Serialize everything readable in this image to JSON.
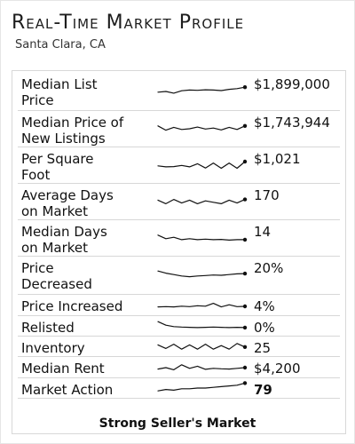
{
  "header": {
    "title": "Real-Time Market Profile",
    "location": "Santa Clara, CA"
  },
  "metrics": [
    {
      "label_lines": [
        "Median List",
        "Price"
      ],
      "value": "$1,899,000",
      "value_style": "normal"
    },
    {
      "label_lines": [
        "Median Price of",
        "New Listings"
      ],
      "value": "$1,743,944",
      "value_style": "normal"
    },
    {
      "label_lines": [
        "Per Square",
        "Foot"
      ],
      "value": "$1,021",
      "value_style": "normal"
    },
    {
      "label_lines": [
        "Average Days",
        "on Market"
      ],
      "value": "170",
      "value_style": "normal"
    },
    {
      "label_lines": [
        "Median Days",
        "on Market"
      ],
      "value": "14",
      "value_style": "normal"
    },
    {
      "label_lines": [
        "Price",
        "Decreased"
      ],
      "value": "20%",
      "value_style": "normal"
    },
    {
      "label_lines": [
        "Price Increased"
      ],
      "value": "4%",
      "value_style": "normal"
    },
    {
      "label_lines": [
        "Relisted"
      ],
      "value": "0%",
      "value_style": "normal"
    },
    {
      "label_lines": [
        "Inventory"
      ],
      "value": "25",
      "value_style": "normal"
    },
    {
      "label_lines": [
        "Median Rent"
      ],
      "value": "$4,200",
      "value_style": "normal"
    },
    {
      "label_lines": [
        "Market Action"
      ],
      "value": "79",
      "value_style": "bold"
    }
  ],
  "sparklines": [
    [
      0.55,
      0.5,
      0.62,
      0.45,
      0.4,
      0.42,
      0.38,
      0.4,
      0.44,
      0.35,
      0.3,
      0.2
    ],
    [
      0.3,
      0.6,
      0.4,
      0.55,
      0.5,
      0.38,
      0.52,
      0.45,
      0.58,
      0.4,
      0.55,
      0.3
    ],
    [
      0.55,
      0.62,
      0.6,
      0.52,
      0.62,
      0.4,
      0.7,
      0.35,
      0.72,
      0.35,
      0.72,
      0.25
    ],
    [
      0.4,
      0.65,
      0.35,
      0.6,
      0.4,
      0.65,
      0.45,
      0.55,
      0.65,
      0.4,
      0.6,
      0.35
    ],
    [
      0.3,
      0.55,
      0.45,
      0.62,
      0.55,
      0.62,
      0.58,
      0.62,
      0.6,
      0.65,
      0.62,
      0.62
    ],
    [
      0.2,
      0.35,
      0.45,
      0.55,
      0.6,
      0.55,
      0.52,
      0.48,
      0.5,
      0.45,
      0.4,
      0.38
    ],
    [
      0.6,
      0.58,
      0.6,
      0.55,
      0.58,
      0.52,
      0.55,
      0.35,
      0.6,
      0.45,
      0.58,
      0.56
    ],
    [
      0.2,
      0.45,
      0.55,
      0.58,
      0.6,
      0.62,
      0.6,
      0.58,
      0.6,
      0.62,
      0.6,
      0.62
    ],
    [
      0.4,
      0.65,
      0.35,
      0.7,
      0.4,
      0.7,
      0.35,
      0.7,
      0.45,
      0.7,
      0.3,
      0.55
    ],
    [
      0.6,
      0.5,
      0.65,
      0.3,
      0.55,
      0.4,
      0.62,
      0.55,
      0.58,
      0.6,
      0.55,
      0.5
    ],
    [
      0.7,
      0.6,
      0.65,
      0.55,
      0.55,
      0.5,
      0.5,
      0.45,
      0.4,
      0.35,
      0.3,
      0.15
    ]
  ],
  "footer": {
    "market_status": "Strong Seller's Market"
  }
}
